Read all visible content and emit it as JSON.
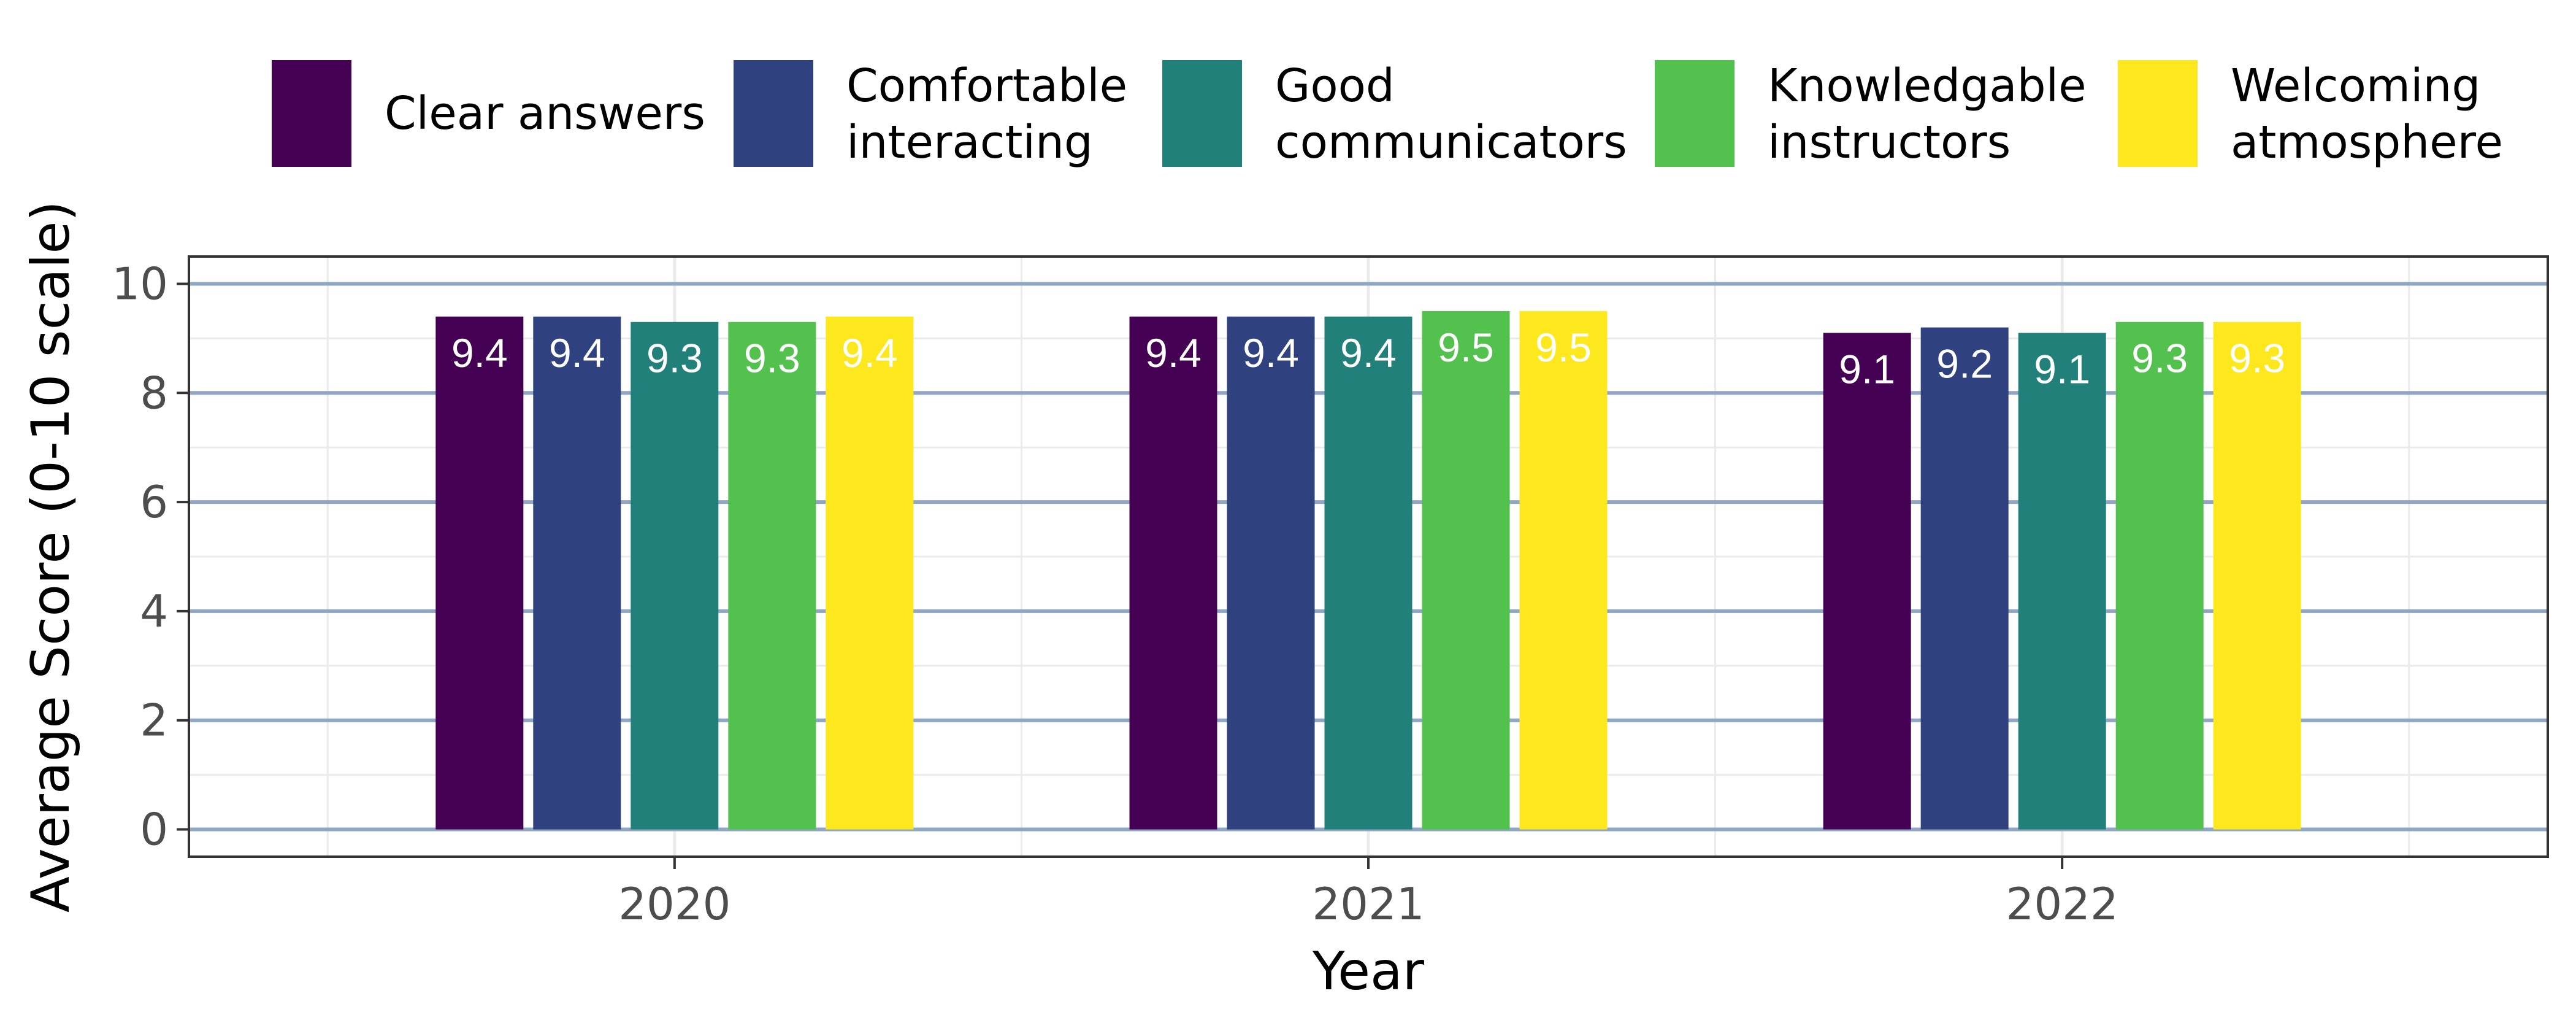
{
  "chart_data": {
    "type": "bar",
    "categories": [
      "2020",
      "2021",
      "2022"
    ],
    "series": [
      {
        "name": "Clear answers",
        "legend_lines": [
          "Clear answers"
        ],
        "color": "#440154",
        "values": [
          9.4,
          9.4,
          9.1
        ]
      },
      {
        "name": "Comfortable interacting",
        "legend_lines": [
          "Comfortable",
          "interacting"
        ],
        "color": "#30417f",
        "values": [
          9.4,
          9.4,
          9.2
        ]
      },
      {
        "name": "Good communicators",
        "legend_lines": [
          "Good",
          "communicators"
        ],
        "color": "#21807a",
        "values": [
          9.3,
          9.4,
          9.1
        ]
      },
      {
        "name": "Knowledgable instructors",
        "legend_lines": [
          "Knowledgable",
          "instructors"
        ],
        "color": "#52c14d",
        "values": [
          9.3,
          9.5,
          9.3
        ]
      },
      {
        "name": "Welcoming atmosphere",
        "legend_lines": [
          "Welcoming",
          "atmosphere"
        ],
        "color": "#fde71d",
        "values": [
          9.4,
          9.5,
          9.3
        ]
      }
    ],
    "data_labels": [
      [
        "9.4",
        "9.4",
        "9.1"
      ],
      [
        "9.4",
        "9.4",
        "9.2"
      ],
      [
        "9.3",
        "9.4",
        "9.1"
      ],
      [
        "9.3",
        "9.5",
        "9.3"
      ],
      [
        "9.4",
        "9.5",
        "9.3"
      ]
    ],
    "title": "",
    "xlabel": "Year",
    "ylabel": "Average Score (0-10 scale)",
    "ylim": [
      -0.5,
      10.5
    ],
    "yticks": [
      0,
      2,
      4,
      6,
      8,
      10
    ],
    "grid": true,
    "legend_position": "top"
  }
}
